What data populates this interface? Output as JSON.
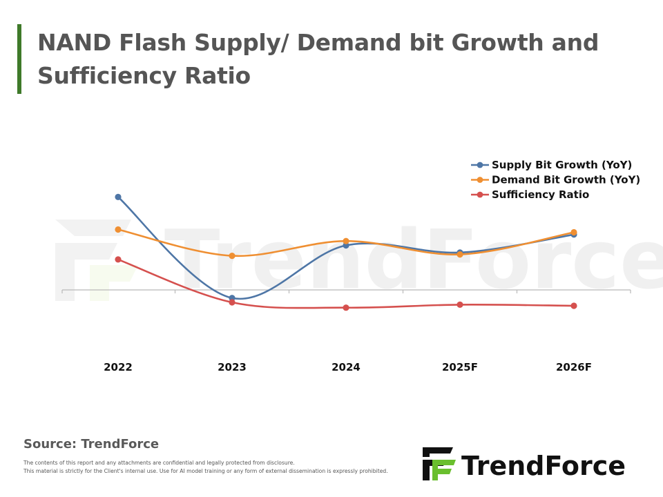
{
  "title": "NAND Flash Supply/ Demand bit Growth and Sufficiency Ratio",
  "source": "Source: TrendForce",
  "disclaimer": [
    "The contents of this report and any attachments are confidential and legally protected from disclosure.",
    "This material is strictly for the Client's internal use. Use for AI model training or any form of external dissemination is expressly prohibited."
  ],
  "brand": {
    "name": "TrendForce",
    "accent": "#6abf2e"
  },
  "watermark": "TrendForce",
  "colors": {
    "supply": "#4e76a6",
    "demand": "#ef8f32",
    "sufficiency": "#d5504e",
    "axis": "#b8b8b8",
    "title_bar": "#3f7a2a"
  },
  "chart_data": {
    "type": "line",
    "categories": [
      "2022",
      "2023",
      "2024",
      "2025F",
      "2026F"
    ],
    "series": [
      {
        "name": "Supply Bit Growth (YoY)",
        "values": [
          40.3,
          -3.5,
          19.3,
          16.2,
          24.0
        ]
      },
      {
        "name": "Demand Bit Growth (YoY)",
        "values": [
          26.2,
          14.8,
          21.2,
          15.4,
          25.0
        ]
      },
      {
        "name": "Sufficiency Ratio",
        "values": [
          13.2,
          -5.4,
          -7.7,
          -6.4,
          -6.9
        ]
      }
    ],
    "ylim": [
      -25,
      60
    ],
    "legend_position": "top-right",
    "grid": false
  }
}
